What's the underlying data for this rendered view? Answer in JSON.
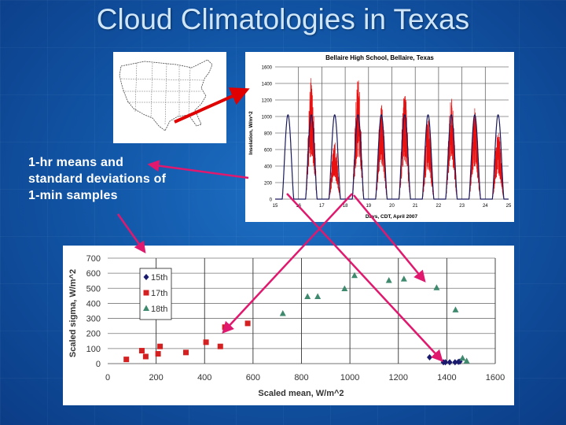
{
  "slide": {
    "title": "Cloud Climatologies in Texas",
    "caption": [
      "1-hr means and",
      "standard deviations of",
      "1-min samples"
    ],
    "map_image": "us-states-outline-map",
    "colors": {
      "arrow_pink": "#e0186e",
      "arrow_red": "#e00000",
      "background": "#1257a8",
      "title": "#cfe6f8"
    }
  },
  "chart_data": [
    {
      "type": "line",
      "title": "Bellaire High School, Bellaire, Texas",
      "xlabel": "Days, CDT, April 2007",
      "ylabel": "Insolation, W/m^2",
      "xlim": [
        15,
        25
      ],
      "ylim": [
        0,
        1600
      ],
      "xticks": [
        "15",
        "16",
        "17",
        "18",
        "19",
        "20",
        "21",
        "22",
        "23",
        "24",
        "25"
      ],
      "yticks": [
        "0",
        "200",
        "400",
        "600",
        "800",
        "1000",
        "1200",
        "1400",
        "1600"
      ],
      "grid": true,
      "series": [
        {
          "color": "#1a1a5e",
          "kind": "clear-sky",
          "days": [
            15,
            16,
            17,
            18,
            19,
            20,
            21,
            22,
            23,
            24
          ],
          "daily_peak": [
            1020,
            1020,
            1020,
            1020,
            1020,
            1020,
            1020,
            1020,
            1020,
            1020
          ]
        },
        {
          "color": "#e81010",
          "kind": "measured",
          "days": [
            16,
            17,
            18,
            19,
            20,
            21,
            22,
            23,
            24
          ],
          "daily_peak": [
            1480,
            700,
            1470,
            1170,
            1320,
            1000,
            1230,
            1100,
            850
          ]
        }
      ]
    },
    {
      "type": "scatter",
      "xlabel": "Scaled mean, W/m^2",
      "ylabel": "Scaled sigma, W/m^2",
      "xlim": [
        0,
        1600
      ],
      "ylim": [
        0,
        700
      ],
      "xticks": [
        "0",
        "200",
        "400",
        "600",
        "800",
        "1000",
        "1200",
        "1400",
        "1600"
      ],
      "yticks": [
        "0",
        "100",
        "200",
        "300",
        "400",
        "500",
        "600",
        "700"
      ],
      "grid": true,
      "legend": "top-left",
      "series": [
        {
          "name": "15th",
          "marker": "diamond",
          "color": "#1a1a6e",
          "points": [
            [
              1329,
              42
            ],
            [
              1386,
              9
            ],
            [
              1394,
              9
            ],
            [
              1412,
              9
            ],
            [
              1434,
              9
            ],
            [
              1448,
              12
            ],
            [
              1454,
              14
            ]
          ]
        },
        {
          "name": "17th",
          "marker": "square",
          "color": "#d42020",
          "points": [
            [
              77,
              28
            ],
            [
              141,
              86
            ],
            [
              157,
              47
            ],
            [
              208,
              65
            ],
            [
              216,
              114
            ],
            [
              323,
              74
            ],
            [
              406,
              142
            ],
            [
              465,
              114
            ],
            [
              484,
              242
            ],
            [
              578,
              267
            ]
          ]
        },
        {
          "name": "18th",
          "marker": "triangle",
          "color": "#3f8a6e",
          "points": [
            [
              723,
              332
            ],
            [
              825,
              444
            ],
            [
              867,
              444
            ],
            [
              978,
              496
            ],
            [
              1019,
              584
            ],
            [
              1161,
              551
            ],
            [
              1223,
              561
            ],
            [
              1358,
              503
            ],
            [
              1436,
              356
            ],
            [
              1465,
              35
            ],
            [
              1482,
              16
            ]
          ]
        }
      ]
    }
  ]
}
